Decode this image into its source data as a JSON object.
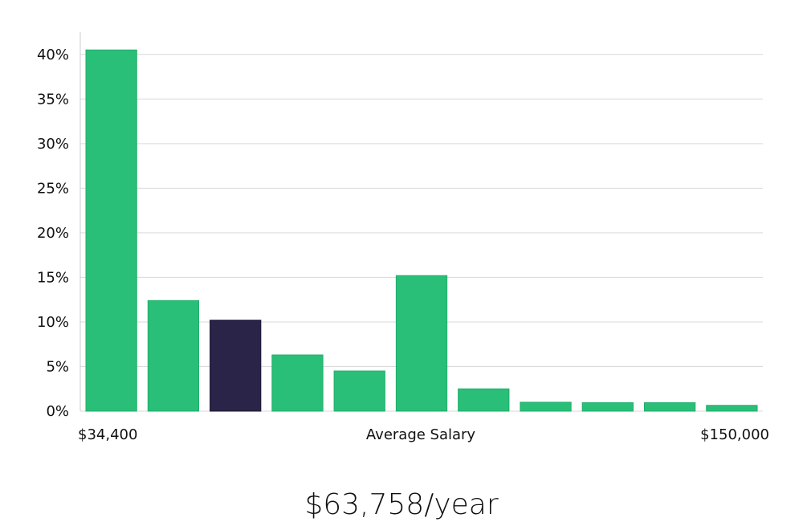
{
  "chart_data": {
    "type": "bar",
    "title": "",
    "xlabel": "",
    "ylabel": "",
    "ylim": [
      0,
      42.5
    ],
    "y_ticks": [
      0,
      5,
      10,
      15,
      20,
      25,
      30,
      35,
      40
    ],
    "y_tick_format": "percent",
    "grid": true,
    "categories": [
      "",
      "",
      "",
      "",
      "",
      "",
      "",
      "",
      "",
      "",
      ""
    ],
    "values": [
      40.5,
      12.4,
      10.2,
      6.3,
      4.5,
      15.2,
      2.5,
      1.0,
      0.95,
      0.95,
      0.65
    ],
    "highlight_index": 2,
    "x_labels": {
      "left": "$34,400",
      "center": "Average Salary",
      "right": "$150,000"
    },
    "colors": {
      "bar": "#2abf78",
      "highlight": "#2a2548"
    }
  },
  "caption": "$63,758/year"
}
